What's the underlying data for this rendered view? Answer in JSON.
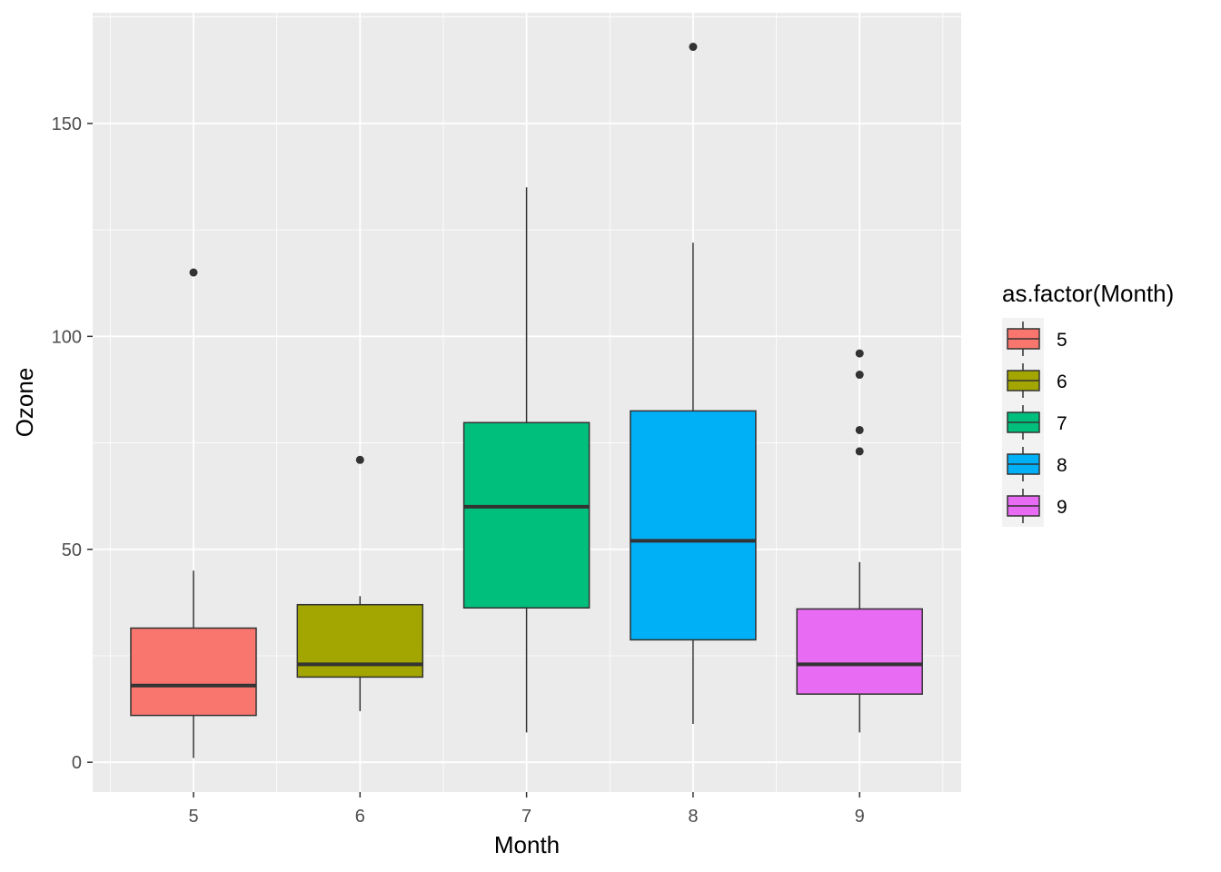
{
  "chart_data": {
    "type": "boxplot",
    "title": "",
    "xlabel": "Month",
    "ylabel": "Ozone",
    "categories": [
      "5",
      "6",
      "7",
      "8",
      "9"
    ],
    "ylim": [
      -7,
      176
    ],
    "yticks": [
      0,
      50,
      100,
      150
    ],
    "ytick_labels": [
      "0",
      "50",
      "100",
      "150"
    ],
    "grid": true,
    "legend": {
      "title": "as.factor(Month)",
      "placement": "right",
      "entries": [
        "5",
        "6",
        "7",
        "8",
        "9"
      ]
    },
    "colors": [
      "#F8766D",
      "#A3A500",
      "#00BF7D",
      "#00B0F6",
      "#E76BF3"
    ],
    "boxes": [
      {
        "category": "5",
        "lower_whisker": 1,
        "q1": 11,
        "median": 18,
        "q3": 31.5,
        "upper_whisker": 45,
        "outliers": [
          115
        ]
      },
      {
        "category": "6",
        "lower_whisker": 12,
        "q1": 20,
        "median": 23,
        "q3": 37,
        "upper_whisker": 39,
        "outliers": [
          71
        ]
      },
      {
        "category": "7",
        "lower_whisker": 7,
        "q1": 36.25,
        "median": 60,
        "q3": 79.75,
        "upper_whisker": 135,
        "outliers": []
      },
      {
        "category": "8",
        "lower_whisker": 9,
        "q1": 28.75,
        "median": 52,
        "q3": 82.5,
        "upper_whisker": 122,
        "outliers": [
          168
        ]
      },
      {
        "category": "9",
        "lower_whisker": 7,
        "q1": 16,
        "median": 23,
        "q3": 36,
        "upper_whisker": 47,
        "outliers": [
          73,
          78,
          91,
          96
        ]
      }
    ]
  }
}
